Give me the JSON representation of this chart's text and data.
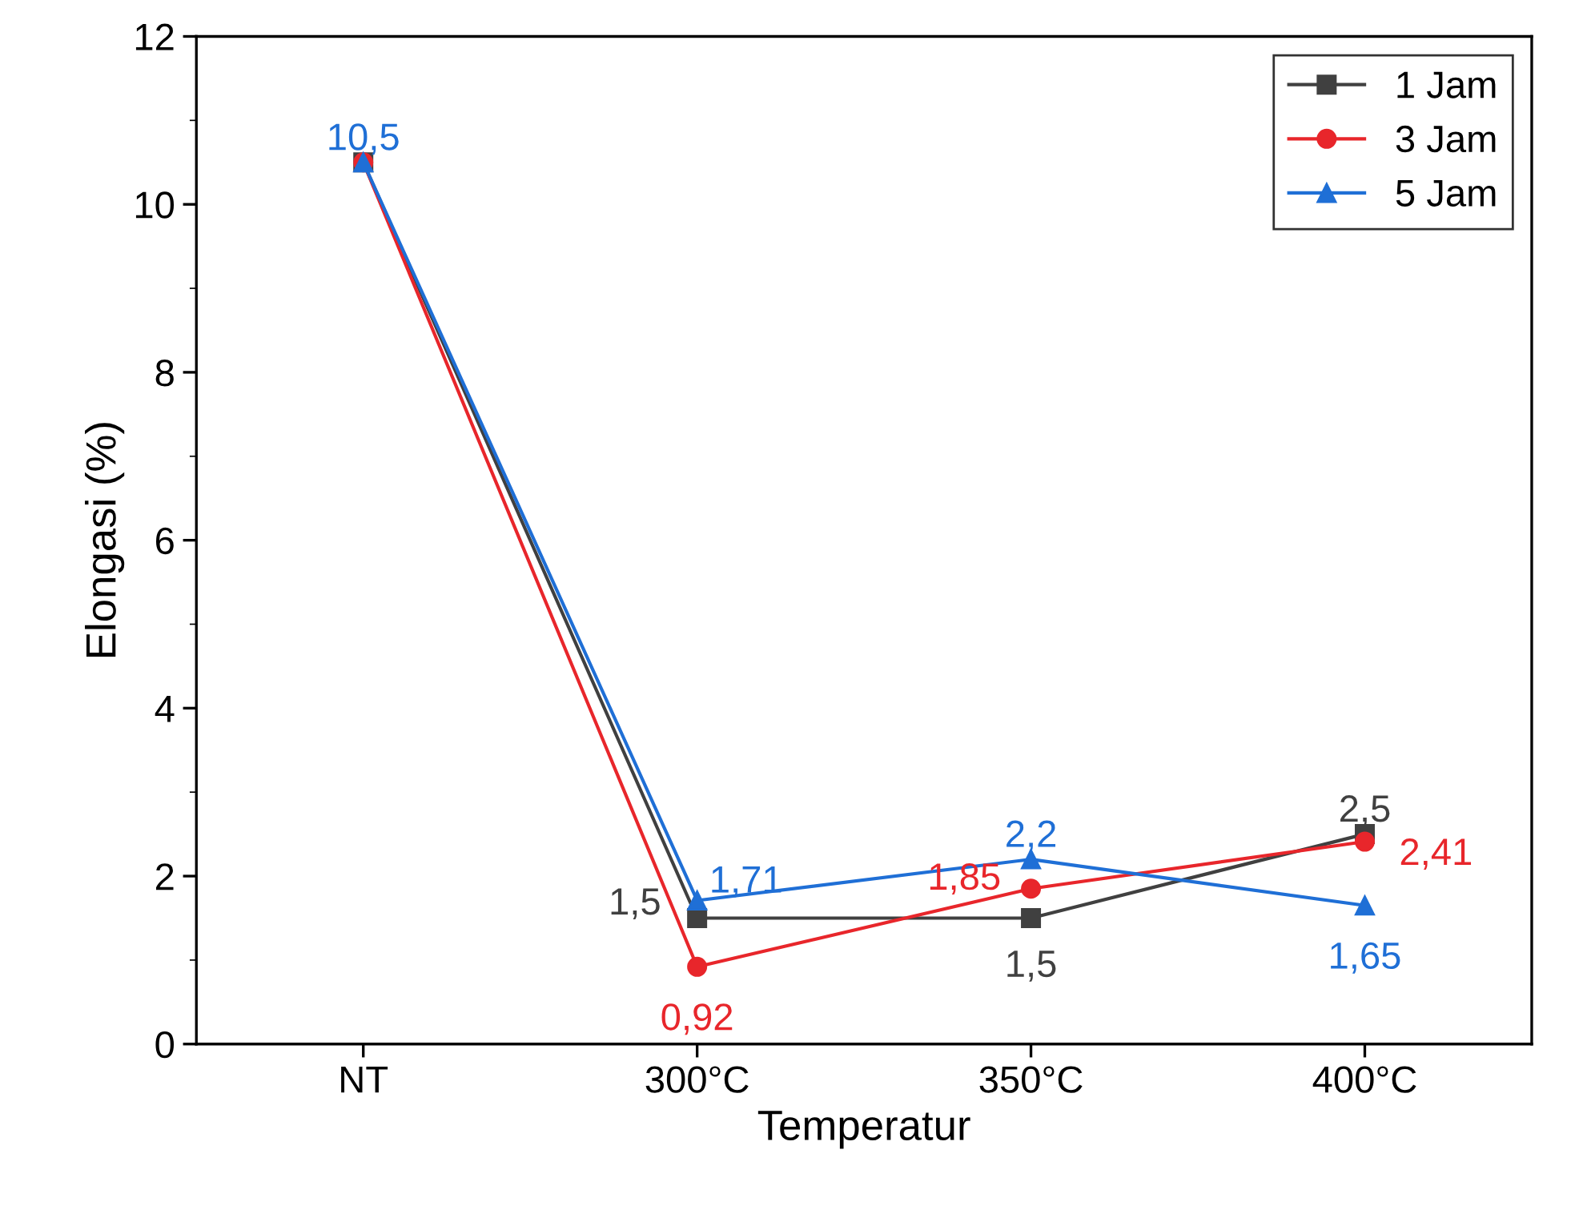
{
  "chart_data": {
    "type": "line",
    "xlabel": "Temperatur",
    "ylabel": "Elongasi (%)",
    "categories": [
      "NT",
      "300°C",
      "350°C",
      "400°C"
    ],
    "ylim": [
      0,
      12
    ],
    "yticks": [
      0,
      2,
      4,
      6,
      8,
      10,
      12
    ],
    "grid": false,
    "legend": "top right",
    "series": [
      {
        "name": "1 Jam",
        "color": "#404040",
        "marker": "square",
        "values": [
          10.5,
          1.5,
          1.5,
          2.5
        ],
        "value_labels": [
          null,
          "1,5",
          "1,5",
          "2,5"
        ]
      },
      {
        "name": "3 Jam",
        "color": "#e8262b",
        "marker": "circle",
        "values": [
          10.5,
          0.92,
          1.85,
          2.41
        ],
        "value_labels": [
          null,
          "0,92",
          "1,85",
          "2,41"
        ]
      },
      {
        "name": "5 Jam",
        "color": "#1f6fd6",
        "marker": "triangle",
        "values": [
          10.5,
          1.71,
          2.2,
          1.65
        ],
        "value_labels": [
          "10,5",
          "1,71",
          "2,2",
          "1,65"
        ]
      }
    ]
  }
}
